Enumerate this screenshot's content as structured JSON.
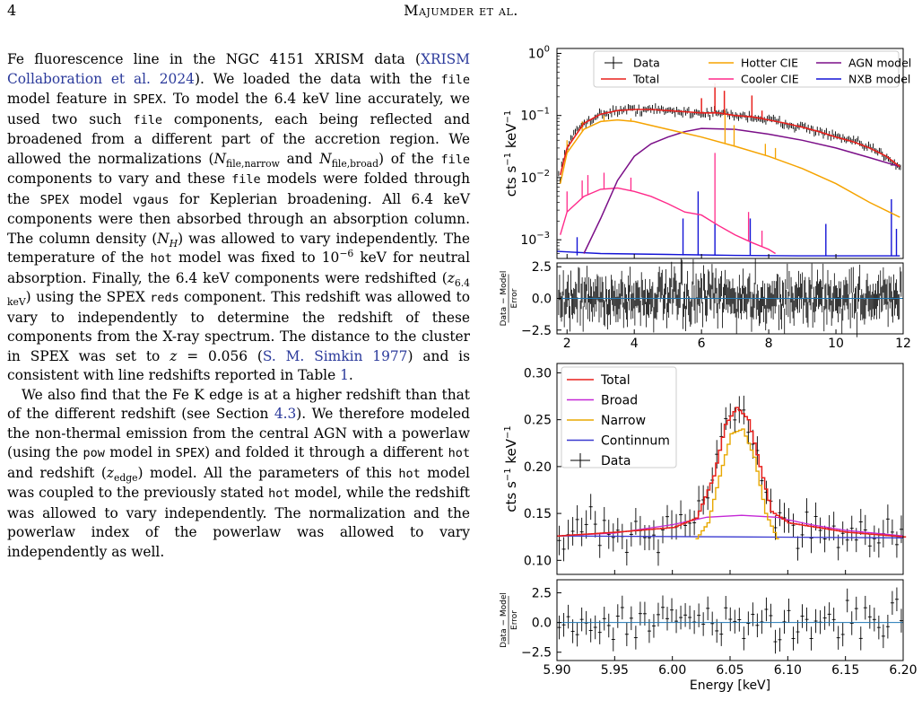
{
  "header": {
    "page_number": "4",
    "running_head": "Majumder et al."
  },
  "text": {
    "p1": {
      "s1": "Fe fluorescence line in the NGC 4151 XRISM data (",
      "cite1": "XRISM Collaboration et al. 2024",
      "s2": "). We loaded the data with the ",
      "code_file1": "file",
      "s3": " model feature in ",
      "code_spex1": "SPEX",
      "s4": ". To model the 6.4 keV line accurately, we used two such ",
      "code_file2": "file",
      "s5": " components, each being reflected and broadened from a different part of the accretion region. We allowed the normalizations (",
      "n_narrow": "N",
      "n_narrow_sub": "file,narrow",
      "s6": " and ",
      "n_broad": "N",
      "n_broad_sub": "file,broad",
      "s7": ") of the ",
      "code_file3": "file",
      "s8": " components to vary and these ",
      "code_file4": "file",
      "s9": " models were folded through the ",
      "code_spex2": "SPEX",
      "s10": " model ",
      "code_vgaus": "vgaus",
      "s11": " for Keplerian broadening. All 6.4 keV components were then absorbed through an absorption column. The column density (",
      "nh": "N",
      "nh_sub": "H",
      "s12": ") was allowed to vary independently. The temperature of the ",
      "code_hot1": "hot",
      "s13": " model was fixed to 10",
      "exp": "−6",
      "s14": " keV for neutral absorption. Finally, the 6.4 keV components were redshifted (",
      "z64": "z",
      "z64_sub": "6.4 keV",
      "s15": ") using the SPEX ",
      "code_reds": "reds",
      "s16": " component. This redshift was allowed to vary to independently to determine the redshift of these components from the X-ray spectrum. The distance to the cluster in SPEX was set to ",
      "zeq": "z",
      "s17": " = 0.056 (",
      "cite2": "S. M. Simkin 1977",
      "s18": ") and is consistent with line redshifts reported in Table ",
      "table_ref": "1",
      "s19": "."
    },
    "p2": {
      "s1": "We also find that the Fe K edge is at a higher redshift than that of the different redshift (see Section ",
      "sec_ref": "4.3",
      "s2": "). We therefore modeled the non-thermal emission from the central AGN with a powerlaw (using the ",
      "code_pow": "pow",
      "s3": " model in ",
      "code_spex": "SPEX",
      "s4": ") and folded it through a different ",
      "code_hot1": "hot",
      "s5": " and redshift (",
      "zedge": "z",
      "zedge_sub": "edge",
      "s6": ") model. All the parameters of this ",
      "code_hot2": "hot",
      "s7": " model was coupled to the previously stated ",
      "code_hot3": "hot",
      "s8": " model, while the redshift was allowed to vary independently. The normalization and the powerlaw index of the powerlaw was allowed to vary independently as well."
    }
  },
  "colors": {
    "data": "#000000",
    "total": "#e8201c",
    "hotter_cie": "#f5a300",
    "cooler_cie": "#ff2a8a",
    "agn_model": "#7b0f88",
    "nxb_model": "#1414d6",
    "broad": "#c427d6",
    "narrow": "#e8a800",
    "continnum": "#3a3ad0",
    "residual_zero": "#1f77b4"
  },
  "chart_data": [
    {
      "type": "line",
      "yscale": "log",
      "ylim": [
        0.0005,
        1.2
      ],
      "xlim": [
        1.7,
        12.0
      ],
      "ylabel": "cts s$^{-1}$ keV$^{-1}$",
      "yticks": [
        "10",
        "10",
        "10",
        "10"
      ],
      "ytick_exponents": [
        "0",
        "−1",
        "−2",
        "−3"
      ],
      "ytick_values": [
        1,
        0.1,
        0.01,
        0.001
      ],
      "legend": [
        "Data",
        "Total",
        "Hotter CIE",
        "Cooler CIE",
        "AGN model",
        "NXB model"
      ],
      "legend_placement": "top",
      "series": [
        {
          "name": "Total",
          "x": [
            1.8,
            2,
            2.5,
            3,
            3.5,
            4,
            4.5,
            5,
            5.5,
            6,
            6.5,
            7,
            7.5,
            8,
            8.5,
            9,
            9.5,
            10,
            10.5,
            11,
            11.5,
            11.9
          ],
          "values": [
            0.011,
            0.03,
            0.075,
            0.105,
            0.12,
            0.125,
            0.125,
            0.12,
            0.115,
            0.11,
            0.11,
            0.1,
            0.095,
            0.085,
            0.075,
            0.065,
            0.055,
            0.045,
            0.038,
            0.03,
            0.022,
            0.015
          ]
        },
        {
          "name": "Hotter CIE",
          "x": [
            1.8,
            2,
            2.5,
            3,
            3.5,
            4,
            5,
            6,
            7,
            8,
            9,
            10,
            11,
            11.9
          ],
          "values": [
            0.008,
            0.025,
            0.06,
            0.08,
            0.085,
            0.08,
            0.06,
            0.045,
            0.032,
            0.022,
            0.014,
            0.008,
            0.004,
            0.0023
          ]
        },
        {
          "name": "Cooler CIE",
          "x": [
            1.8,
            2,
            2.5,
            3,
            3.5,
            4,
            4.5,
            5,
            5.5,
            6,
            6.5,
            7,
            7.5,
            8,
            8.2
          ],
          "values": [
            0.0012,
            0.0028,
            0.005,
            0.0065,
            0.0068,
            0.006,
            0.005,
            0.0038,
            0.0028,
            0.0025,
            0.0017,
            0.0012,
            0.0009,
            0.0007,
            0.0006
          ]
        },
        {
          "name": "AGN model",
          "x": [
            2.5,
            3,
            3.5,
            4,
            4.5,
            5,
            5.5,
            6,
            7,
            8,
            9,
            10,
            11,
            11.9
          ],
          "values": [
            0.0006,
            0.0022,
            0.009,
            0.022,
            0.035,
            0.045,
            0.055,
            0.062,
            0.06,
            0.05,
            0.04,
            0.03,
            0.021,
            0.015
          ]
        },
        {
          "name": "NXB model",
          "x": [
            1.7,
            3,
            5,
            7,
            9,
            11,
            11.9
          ],
          "values": [
            0.00065,
            0.0006,
            0.00058,
            0.00056,
            0.00055,
            0.00055,
            0.00055
          ]
        }
      ]
    },
    {
      "type": "scatter",
      "xlim": [
        1.7,
        12.0
      ],
      "ylim": [
        -2.8,
        2.8
      ],
      "ylabel": "$\\frac{\\mathrm{Data} - \\mathrm{Model}}{\\mathrm{Error}}$",
      "ylabel_num": "Data − Model",
      "ylabel_den": "Error",
      "yticks": [
        "−2.5",
        "0.0",
        "2.5"
      ],
      "ytick_values": [
        -2.5,
        0,
        2.5
      ],
      "xticks": [
        "2",
        "4",
        "6",
        "8",
        "10",
        "12"
      ],
      "xtick_values": [
        2,
        4,
        6,
        8,
        10,
        12
      ]
    },
    {
      "type": "line",
      "xlim": [
        5.9,
        6.2
      ],
      "ylim": [
        0.085,
        0.31
      ],
      "ylabel": "cts s$^{-1}$ keV$^{-1}$",
      "yticks": [
        "0.10",
        "0.15",
        "0.20",
        "0.25",
        "0.30"
      ],
      "ytick_values": [
        0.1,
        0.15,
        0.2,
        0.25,
        0.3
      ],
      "legend": [
        "Total",
        "Broad",
        "Narrow",
        "Continnum",
        "Data"
      ],
      "legend_placement": "top-left",
      "series": [
        {
          "name": "Total",
          "x": [
            5.9,
            5.95,
            6.0,
            6.02,
            6.035,
            6.045,
            6.055,
            6.065,
            6.075,
            6.085,
            6.1,
            6.15,
            6.2
          ],
          "values": [
            0.126,
            0.13,
            0.135,
            0.145,
            0.19,
            0.245,
            0.263,
            0.25,
            0.2,
            0.152,
            0.14,
            0.13,
            0.125
          ]
        },
        {
          "name": "Broad",
          "x": [
            5.9,
            5.95,
            6.0,
            6.03,
            6.06,
            6.09,
            6.12,
            6.15,
            6.2
          ],
          "values": [
            0.126,
            0.129,
            0.138,
            0.146,
            0.148,
            0.146,
            0.138,
            0.132,
            0.126
          ]
        },
        {
          "name": "Narrow",
          "x": [
            6.02,
            6.03,
            6.04,
            6.05,
            6.06,
            6.07,
            6.08,
            6.09
          ],
          "values": [
            0.123,
            0.14,
            0.19,
            0.235,
            0.24,
            0.21,
            0.15,
            0.123
          ]
        },
        {
          "name": "Continnum",
          "x": [
            5.9,
            6.05,
            6.2
          ],
          "values": [
            0.126,
            0.125,
            0.124
          ]
        }
      ]
    },
    {
      "type": "scatter",
      "xlim": [
        5.9,
        6.2
      ],
      "ylim": [
        -3.2,
        3.6
      ],
      "ylabel_num": "Data − Model",
      "ylabel_den": "Error",
      "yticks": [
        "−2.5",
        "0.0",
        "2.5"
      ],
      "ytick_values": [
        -2.5,
        0,
        2.5
      ],
      "xticks": [
        "5.90",
        "5.95",
        "6.00",
        "6.05",
        "6.10",
        "6.15",
        "6.20"
      ],
      "xtick_values": [
        5.9,
        5.95,
        6.0,
        6.05,
        6.1,
        6.15,
        6.2
      ],
      "xlabel": "Energy [keV]"
    }
  ]
}
